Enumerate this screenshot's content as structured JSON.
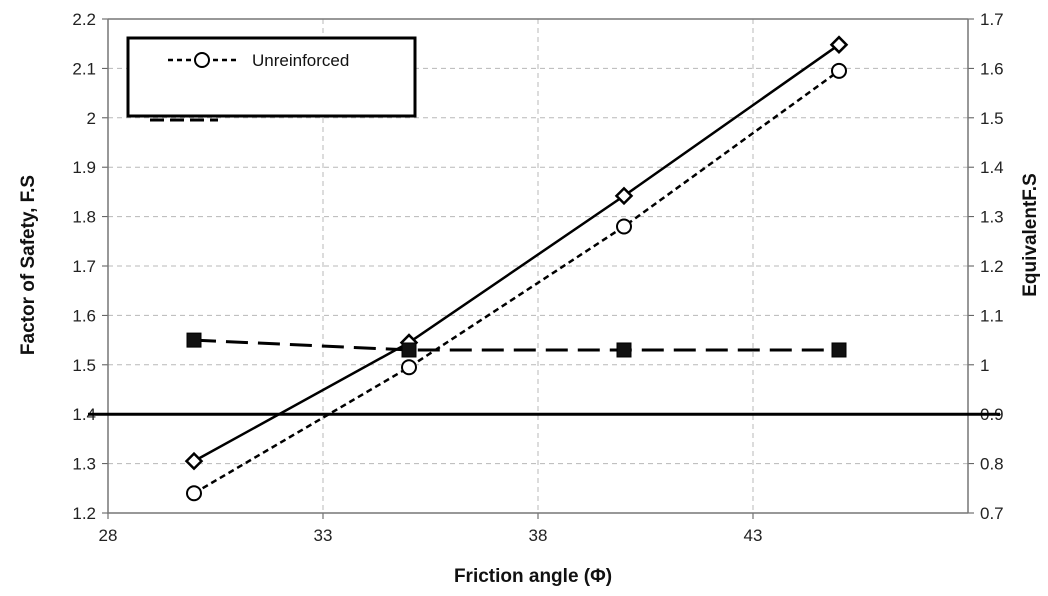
{
  "chart_data": {
    "type": "line",
    "title": "",
    "xlabel": "Friction angle (Φ)",
    "ylabel": "Factor of Safety, F.S",
    "y2label": "EquivalentF.S",
    "xlim": [
      28,
      48
    ],
    "ylim": [
      1.2,
      2.2
    ],
    "y2lim": [
      0.7,
      1.7
    ],
    "x_ticks": [
      "28",
      "33",
      "38",
      "43"
    ],
    "y_ticks": [
      "1.2",
      "1.3",
      "1.4",
      "1.5",
      "1.6",
      "1.7",
      "1.8",
      "1.9",
      "2",
      "2.1",
      "2.2"
    ],
    "y2_ticks": [
      "0.7",
      "0.8",
      "0.9",
      "1",
      "1.1",
      "1.2",
      "1.3",
      "1.4",
      "1.5",
      "1.6",
      "1.7"
    ],
    "grid": true,
    "legend_position": "top-left",
    "reference_line_y": 1.4,
    "series": [
      {
        "name": "Unreinforced",
        "axis": "left",
        "line_style": "dotted",
        "marker": "open-circle",
        "color": "#000000",
        "x": [
          30,
          35,
          40,
          45
        ],
        "values": [
          1.24,
          1.495,
          1.78,
          2.095
        ]
      },
      {
        "axis": "left",
        "line_style": "solid",
        "marker": "open-diamond",
        "color": "#000000",
        "x": [
          30,
          35,
          40,
          45
        ],
        "values": [
          1.305,
          1.545,
          1.842,
          2.148
        ]
      },
      {
        "axis": "right",
        "line_style": "dashed",
        "marker": "filled-square",
        "color": "#000000",
        "x": [
          30,
          35,
          40,
          45
        ],
        "values": [
          1.05,
          1.03,
          1.03,
          1.03
        ]
      }
    ]
  }
}
